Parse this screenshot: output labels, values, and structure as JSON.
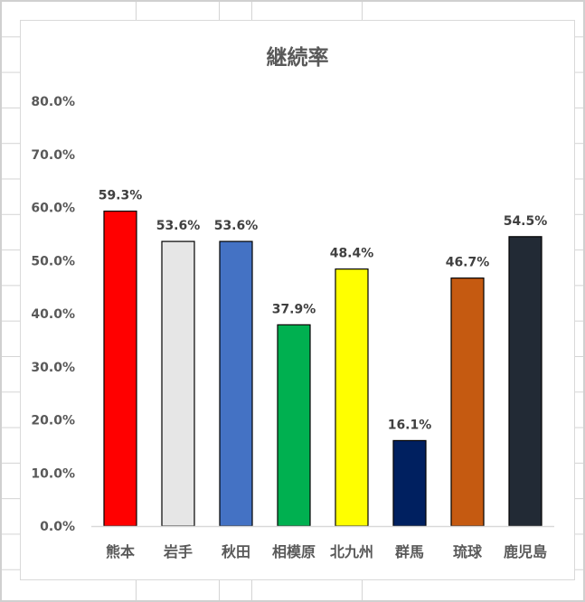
{
  "chart_data": {
    "type": "bar",
    "title": "継続率",
    "categories": [
      "熊本",
      "岩手",
      "秋田",
      "相模原",
      "北九州",
      "群馬",
      "琉球",
      "鹿児島"
    ],
    "values": [
      59.3,
      53.6,
      53.6,
      37.9,
      48.4,
      16.1,
      46.7,
      54.5
    ],
    "data_labels": [
      "59.3%",
      "53.6%",
      "53.6%",
      "37.9%",
      "48.4%",
      "16.1%",
      "46.7%",
      "54.5%"
    ],
    "colors": [
      "#FF0000",
      "#E6E6E6",
      "#4472C4",
      "#00B050",
      "#FFFF00",
      "#002060",
      "#C55A11",
      "#222A35"
    ],
    "y_ticks": [
      "0.0%",
      "10.0%",
      "20.0%",
      "30.0%",
      "40.0%",
      "50.0%",
      "60.0%",
      "70.0%",
      "80.0%"
    ],
    "ylim": [
      0,
      80
    ],
    "xlabel": "",
    "ylabel": "",
    "grid": false,
    "legend": "none"
  }
}
